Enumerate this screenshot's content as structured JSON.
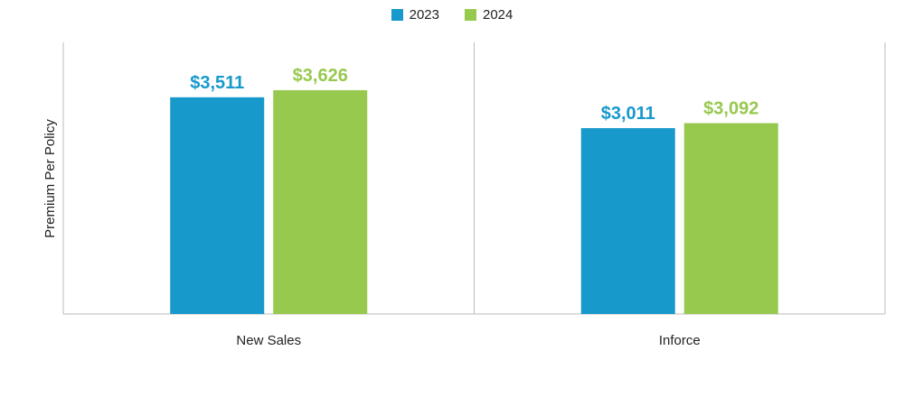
{
  "chart_data": {
    "type": "bar",
    "categories": [
      "New Sales",
      "Inforce"
    ],
    "series": [
      {
        "name": "2023",
        "color": "#1899cc",
        "values": [
          3511,
          3011
        ],
        "labels": [
          "$3,511",
          "$3,011"
        ]
      },
      {
        "name": "2024",
        "color": "#97c94f",
        "values": [
          3626,
          3092
        ],
        "labels": [
          "$3,626",
          "$3,092"
        ]
      }
    ],
    "ylabel": "Premium Per Policy",
    "xlabel": "",
    "ylim": [
      0,
      4400
    ],
    "grid": false,
    "legend_position": "top-center",
    "axis_color": "#bbbbbb"
  }
}
